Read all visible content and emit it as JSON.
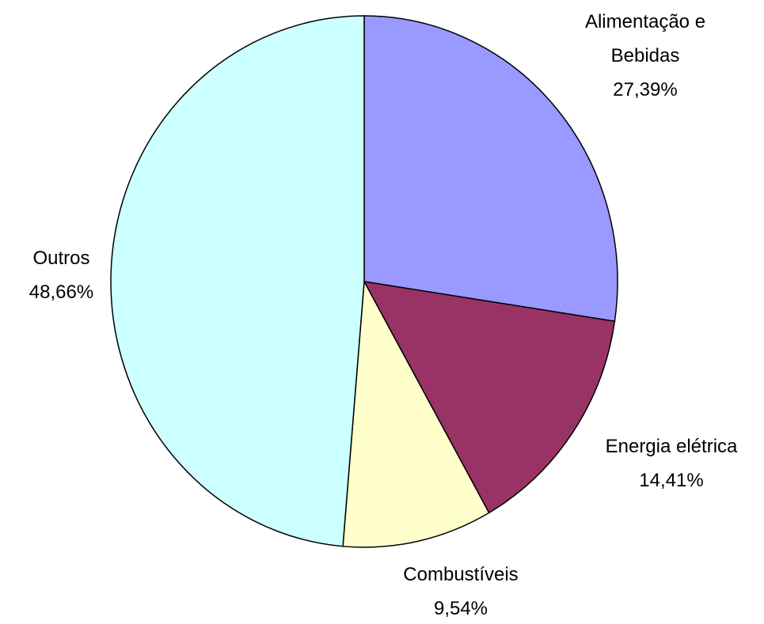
{
  "chart_data": {
    "type": "pie",
    "categories": [
      "Alimentação e Bebidas",
      "Energia elétrica",
      "Combustíveis",
      "Outros"
    ],
    "values": [
      27.39,
      14.41,
      9.54,
      48.66
    ],
    "value_labels": [
      "27,39%",
      "14,41%",
      "9,54%",
      "48,66%"
    ],
    "colors": [
      "#9999ff",
      "#993366",
      "#ffffcc",
      "#ccffff"
    ]
  }
}
